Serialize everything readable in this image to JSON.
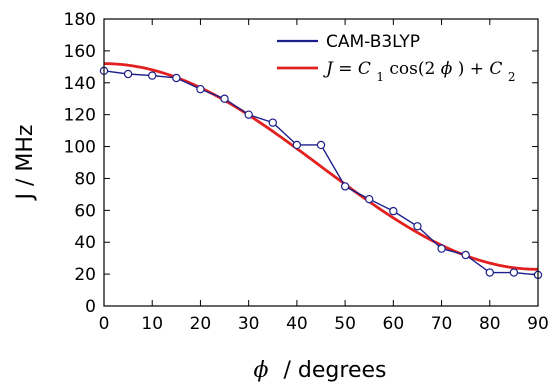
{
  "chart_data": {
    "type": "line",
    "xlabel_symbol": "ϕ",
    "xlabel_text": "/ degrees",
    "ylabel": "J / MHz",
    "xlim": [
      0,
      90
    ],
    "ylim": [
      0,
      180
    ],
    "x_ticks": [
      0,
      10,
      20,
      30,
      40,
      50,
      60,
      70,
      80,
      90
    ],
    "y_ticks": [
      0,
      20,
      40,
      60,
      80,
      100,
      120,
      140,
      160,
      180
    ],
    "grid": false,
    "legend_position": "top-right",
    "series": [
      {
        "name": "CAM-B3LYP",
        "kind": "line-with-markers",
        "color": "#1c1f8a",
        "x": [
          0,
          5,
          10,
          15,
          20,
          25,
          30,
          35,
          40,
          45,
          50,
          55,
          60,
          65,
          70,
          75,
          80,
          85,
          90
        ],
        "y": [
          147.5,
          145.5,
          144.5,
          143,
          136,
          130,
          120,
          115,
          101,
          101,
          75,
          67,
          59.5,
          50,
          36,
          32,
          21,
          21,
          19.5
        ]
      },
      {
        "name": "J = C1 cos(2ϕ) + C2",
        "kind": "fit-line",
        "color": "#e32020",
        "C1": 64.5,
        "C2": 87.5
      }
    ],
    "legend": {
      "fit_label_parts": {
        "J": "J",
        "eq": " = ",
        "C": "C",
        "sub1": "1",
        "cos_open": " cos(2",
        "phi": "ϕ",
        "close_plus": ") + ",
        "sub2": "2"
      }
    }
  }
}
